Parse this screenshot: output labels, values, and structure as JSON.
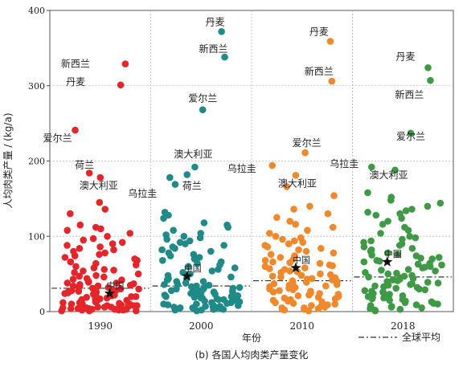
{
  "chart_data": {
    "type": "scatter",
    "title": "(b) 各国人均肉类产量变化",
    "xlabel": "年份",
    "ylabel": "人均肉类产量 / (kg/a)",
    "ylim": [
      0,
      400
    ],
    "yticks": [
      0,
      100,
      200,
      300,
      400
    ],
    "grid": true,
    "legend": {
      "position": "bottom-right",
      "label": "全球平均"
    },
    "colors": {
      "1990": "#e4262b",
      "2000": "#1f8a87",
      "2010": "#f0882c",
      "2018": "#3f9a46",
      "star": "#111111",
      "global_avg": "#333333"
    },
    "panels": [
      {
        "year": "1990",
        "global_avg": 31,
        "labeled": [
          {
            "label": "新西兰",
            "y": 329
          },
          {
            "label": "丹麦",
            "y": 301
          },
          {
            "label": "爱尔兰",
            "y": 241
          },
          {
            "label": "荷兰",
            "y": 184
          },
          {
            "label": "澳大利亚",
            "y": 178
          }
        ],
        "china": {
          "label": "中国",
          "y": 24
        },
        "others": [
          145,
          136,
          130,
          115,
          112,
          110,
          108,
          104,
          100,
          97,
          95,
          92,
          90,
          88,
          86,
          84,
          82,
          80,
          78,
          76,
          74,
          72,
          70,
          68,
          66,
          64,
          62,
          60,
          58,
          56,
          55,
          54,
          52,
          50,
          48,
          47,
          46,
          44,
          43,
          42,
          40,
          39,
          38,
          37,
          36,
          35,
          34,
          33,
          32,
          31,
          30,
          29,
          28,
          27,
          26,
          25,
          24,
          23,
          22,
          21,
          20,
          19,
          18,
          17,
          16,
          15,
          14,
          13,
          12,
          12,
          11,
          10,
          10,
          9,
          9,
          8,
          8,
          7,
          7,
          6,
          6,
          5,
          5,
          4,
          4,
          3,
          3,
          2,
          2,
          1,
          1,
          1,
          18,
          22,
          26,
          30,
          14,
          10,
          8,
          6,
          4,
          2,
          20,
          16,
          12,
          34,
          38,
          28,
          24,
          9,
          5,
          3
        ]
      },
      {
        "year": "2000",
        "global_avg": 34,
        "labeled": [
          {
            "label": "丹麦",
            "y": 372
          },
          {
            "label": "新西兰",
            "y": 338
          },
          {
            "label": "爱尔兰",
            "y": 268
          },
          {
            "label": "澳大利亚",
            "y": 192
          },
          {
            "label": "荷兰",
            "y": 182
          },
          {
            "label": "乌拉圭",
            "y": 178
          }
        ],
        "china": {
          "label": "中国",
          "y": 47
        },
        "others": [
          169,
          132,
          128,
          124,
          118,
          115,
          112,
          108,
          104,
          102,
          100,
          98,
          96,
          94,
          92,
          90,
          88,
          86,
          84,
          82,
          80,
          78,
          76,
          74,
          72,
          70,
          68,
          66,
          64,
          62,
          60,
          58,
          56,
          54,
          52,
          50,
          48,
          46,
          44,
          42,
          40,
          38,
          36,
          35,
          34,
          33,
          32,
          31,
          30,
          29,
          28,
          27,
          26,
          25,
          24,
          23,
          22,
          21,
          20,
          19,
          18,
          17,
          16,
          15,
          14,
          13,
          12,
          11,
          10,
          9,
          8,
          7,
          6,
          5,
          4,
          3,
          2,
          1,
          12,
          16,
          20,
          24,
          28,
          32,
          8,
          6,
          4,
          2,
          36,
          40,
          44,
          10,
          14,
          18,
          22,
          26,
          30,
          3,
          5,
          7
        ]
      },
      {
        "year": "2010",
        "global_avg": 41,
        "labeled": [
          {
            "label": "丹麦",
            "y": 359
          },
          {
            "label": "新西兰",
            "y": 306
          },
          {
            "label": "爱尔兰",
            "y": 211
          },
          {
            "label": "乌拉圭",
            "y": 194
          },
          {
            "label": "澳大利亚",
            "y": 181
          }
        ],
        "china": {
          "label": "中国",
          "y": 58
        },
        "others": [
          166,
          154,
          140,
          136,
          130,
          125,
          120,
          116,
          112,
          108,
          104,
          100,
          98,
          96,
          94,
          92,
          90,
          88,
          86,
          84,
          82,
          80,
          78,
          76,
          74,
          72,
          70,
          68,
          66,
          64,
          62,
          60,
          58,
          56,
          54,
          52,
          50,
          48,
          46,
          44,
          42,
          40,
          38,
          36,
          34,
          32,
          30,
          28,
          26,
          24,
          22,
          20,
          18,
          16,
          14,
          12,
          10,
          8,
          6,
          4,
          2,
          1,
          15,
          19,
          23,
          27,
          31,
          35,
          39,
          43,
          47,
          11,
          9,
          7,
          5,
          3,
          25,
          29,
          33,
          37,
          41,
          45,
          13,
          17,
          21,
          49,
          53,
          57,
          61,
          65,
          3,
          5
        ]
      },
      {
        "year": "2018",
        "global_avg": 46,
        "labeled": [
          {
            "label": "丹麦",
            "y": 324
          },
          {
            "label": "新西兰",
            "y": 307
          },
          {
            "label": "爱尔兰",
            "y": 237
          },
          {
            "label": "乌拉圭",
            "y": 192
          },
          {
            "label": "澳大利亚",
            "y": 188
          }
        ],
        "china": {
          "label": "中国",
          "y": 66
        },
        "others": [
          158,
          152,
          148,
          144,
          140,
          136,
          134,
          132,
          130,
          128,
          124,
          120,
          116,
          112,
          108,
          104,
          100,
          98,
          96,
          94,
          92,
          90,
          88,
          86,
          84,
          82,
          80,
          78,
          76,
          74,
          72,
          70,
          68,
          66,
          64,
          62,
          60,
          58,
          56,
          54,
          52,
          50,
          48,
          46,
          44,
          42,
          40,
          38,
          36,
          34,
          32,
          30,
          28,
          26,
          24,
          22,
          20,
          18,
          16,
          14,
          12,
          10,
          8,
          6,
          4,
          2,
          1,
          15,
          19,
          23,
          27,
          31,
          35,
          39,
          43,
          47,
          11,
          9,
          7,
          5,
          3,
          25,
          29,
          33,
          37,
          41,
          45,
          13,
          17,
          21,
          51,
          55,
          59,
          63,
          67,
          71,
          75
        ]
      }
    ]
  }
}
